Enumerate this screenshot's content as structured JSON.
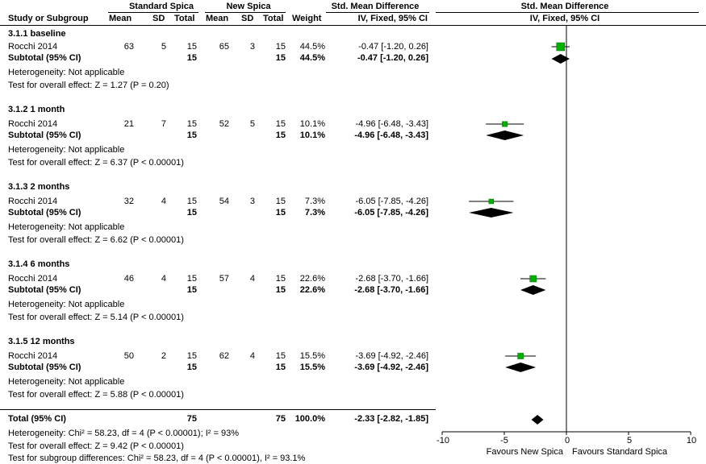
{
  "headers": {
    "study": "Study or Subgroup",
    "group1": "Standard Spica",
    "group2": "New Spica",
    "mean": "Mean",
    "sd": "SD",
    "total": "Total",
    "weight": "Weight",
    "effect_title": "Std. Mean Difference",
    "effect_method": "IV, Fixed, 95% CI",
    "plot_title": "Std. Mean Difference",
    "plot_method": "IV, Fixed, 95% CI"
  },
  "subgroups": [
    {
      "title": "3.1.1 baseline",
      "study": {
        "name": "Rocchi 2014",
        "m1": "63",
        "sd1": "5",
        "n1": "15",
        "m2": "65",
        "sd2": "3",
        "n2": "15",
        "weight": "44.5%",
        "ci": "-0.47 [-1.20, 0.26]"
      },
      "subtotal": {
        "label": "Subtotal (95% CI)",
        "n1": "15",
        "n2": "15",
        "weight": "44.5%",
        "ci": "-0.47 [-1.20, 0.26]"
      },
      "heterogeneity": "Heterogeneity: Not applicable",
      "overall": "Test for overall effect: Z = 1.27 (P = 0.20)"
    },
    {
      "title": "3.1.2 1 month",
      "study": {
        "name": "Rocchi 2014",
        "m1": "21",
        "sd1": "7",
        "n1": "15",
        "m2": "52",
        "sd2": "5",
        "n2": "15",
        "weight": "10.1%",
        "ci": "-4.96 [-6.48, -3.43]"
      },
      "subtotal": {
        "label": "Subtotal (95% CI)",
        "n1": "15",
        "n2": "15",
        "weight": "10.1%",
        "ci": "-4.96 [-6.48, -3.43]"
      },
      "heterogeneity": "Heterogeneity: Not applicable",
      "overall": "Test for overall effect: Z = 6.37 (P < 0.00001)"
    },
    {
      "title": "3.1.3 2 months",
      "study": {
        "name": "Rocchi 2014",
        "m1": "32",
        "sd1": "4",
        "n1": "15",
        "m2": "54",
        "sd2": "3",
        "n2": "15",
        "weight": "7.3%",
        "ci": "-6.05 [-7.85, -4.26]"
      },
      "subtotal": {
        "label": "Subtotal (95% CI)",
        "n1": "15",
        "n2": "15",
        "weight": "7.3%",
        "ci": "-6.05 [-7.85, -4.26]"
      },
      "heterogeneity": "Heterogeneity: Not applicable",
      "overall": "Test for overall effect: Z = 6.62 (P < 0.00001)"
    },
    {
      "title": "3.1.4 6 months",
      "study": {
        "name": "Rocchi 2014",
        "m1": "46",
        "sd1": "4",
        "n1": "15",
        "m2": "57",
        "sd2": "4",
        "n2": "15",
        "weight": "22.6%",
        "ci": "-2.68 [-3.70, -1.66]"
      },
      "subtotal": {
        "label": "Subtotal (95% CI)",
        "n1": "15",
        "n2": "15",
        "weight": "22.6%",
        "ci": "-2.68 [-3.70, -1.66]"
      },
      "heterogeneity": "Heterogeneity: Not applicable",
      "overall": "Test for overall effect: Z = 5.14 (P < 0.00001)"
    },
    {
      "title": "3.1.5 12 months",
      "study": {
        "name": "Rocchi 2014",
        "m1": "50",
        "sd1": "2",
        "n1": "15",
        "m2": "62",
        "sd2": "4",
        "n2": "15",
        "weight": "15.5%",
        "ci": "-3.69 [-4.92, -2.46]"
      },
      "subtotal": {
        "label": "Subtotal (95% CI)",
        "n1": "15",
        "n2": "15",
        "weight": "15.5%",
        "ci": "-3.69 [-4.92, -2.46]"
      },
      "heterogeneity": "Heterogeneity: Not applicable",
      "overall": "Test for overall effect: Z = 5.88 (P < 0.00001)"
    }
  ],
  "total": {
    "label": "Total (95% CI)",
    "n1": "75",
    "n2": "75",
    "weight": "100.0%",
    "ci": "-2.33 [-2.82, -1.85]",
    "heterogeneity": "Heterogeneity: Chi² = 58.23, df = 4 (P < 0.00001); I² = 93%",
    "overall": "Test for overall effect: Z = 9.42 (P < 0.00001)",
    "subgroup_diff": "Test for subgroup differences: Chi² = 58.23, df = 4 (P < 0.00001), I² = 93.1%"
  },
  "axis": {
    "ticks": [
      "-10",
      "-5",
      "0",
      "5",
      "10"
    ],
    "left_label": "Favours New Spica",
    "right_label": "Favours Standard Spica"
  },
  "colors": {
    "marker": "#00b000",
    "diamond": "#000000"
  },
  "chart_data": {
    "type": "forest",
    "xlim": [
      -10,
      10
    ],
    "xticks": [
      -10,
      -5,
      0,
      5,
      10
    ],
    "studies": [
      {
        "subgroup": "3.1.1 baseline",
        "estimate": -0.47,
        "lower": -1.2,
        "upper": 0.26,
        "weight": 44.5
      },
      {
        "subgroup": "3.1.2 1 month",
        "estimate": -4.96,
        "lower": -6.48,
        "upper": -3.43,
        "weight": 10.1
      },
      {
        "subgroup": "3.1.3 2 months",
        "estimate": -6.05,
        "lower": -7.85,
        "upper": -4.26,
        "weight": 7.3
      },
      {
        "subgroup": "3.1.4 6 months",
        "estimate": -2.68,
        "lower": -3.7,
        "upper": -1.66,
        "weight": 22.6
      },
      {
        "subgroup": "3.1.5 12 months",
        "estimate": -3.69,
        "lower": -4.92,
        "upper": -2.46,
        "weight": 15.5
      }
    ],
    "subtotals": [
      {
        "estimate": -0.47,
        "lower": -1.2,
        "upper": 0.26
      },
      {
        "estimate": -4.96,
        "lower": -6.48,
        "upper": -3.43
      },
      {
        "estimate": -6.05,
        "lower": -7.85,
        "upper": -4.26
      },
      {
        "estimate": -2.68,
        "lower": -3.7,
        "upper": -1.66
      },
      {
        "estimate": -3.69,
        "lower": -4.92,
        "upper": -2.46
      }
    ],
    "overall": {
      "estimate": -2.33,
      "lower": -2.82,
      "upper": -1.85
    }
  }
}
